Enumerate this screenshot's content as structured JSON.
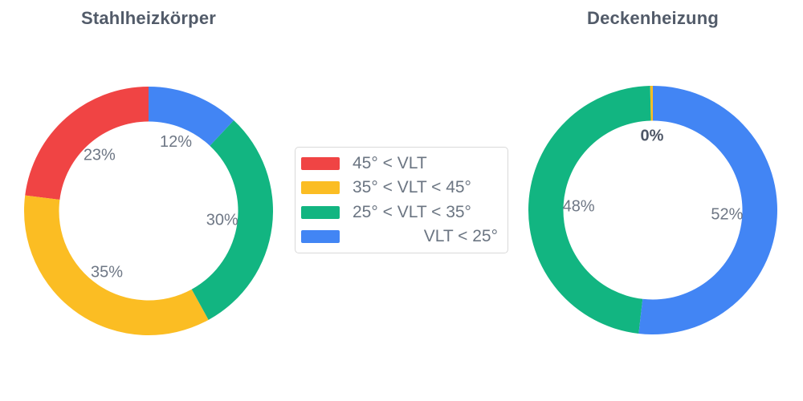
{
  "page": {
    "background_color": "#ffffff"
  },
  "legend": {
    "items": [
      {
        "label": "45° < VLT",
        "color": "#F04444"
      },
      {
        "label": "35° < VLT < 45°",
        "color": "#FBBD23"
      },
      {
        "label": "25° < VLT < 35°",
        "color": "#12B581"
      },
      {
        "label": "VLT < 25°",
        "color": "#4285F4"
      }
    ]
  },
  "chart_data": [
    {
      "type": "pie",
      "subtype": "donut",
      "title": "Stahlheizkörper",
      "hole": 0.72,
      "direction": "counterclockwise",
      "rotation_deg": 0,
      "labels": [
        "45° < VLT",
        "35° < VLT < 45°",
        "25° < VLT < 35°",
        "VLT < 25°"
      ],
      "values": [
        23,
        35,
        30,
        12
      ],
      "display_labels": [
        "23%",
        "35%",
        "30%",
        "12%"
      ],
      "bold_labels": [
        false,
        false,
        false,
        false
      ],
      "colors": [
        "#F04444",
        "#FBBD23",
        "#12B581",
        "#4285F4"
      ]
    },
    {
      "type": "pie",
      "subtype": "donut",
      "title": "Deckenheizung",
      "hole": 0.72,
      "direction": "counterclockwise",
      "rotation_deg": 0,
      "labels": [
        "45° < VLT",
        "35° < VLT < 45°",
        "25° < VLT < 35°",
        "VLT < 25°"
      ],
      "values": [
        0,
        0,
        48,
        52
      ],
      "display_labels": [
        "",
        "0%",
        "48%",
        "52%"
      ],
      "bold_labels": [
        false,
        true,
        false,
        false
      ],
      "colors": [
        "#F04444",
        "#FBBD23",
        "#12B581",
        "#4285F4"
      ]
    }
  ]
}
